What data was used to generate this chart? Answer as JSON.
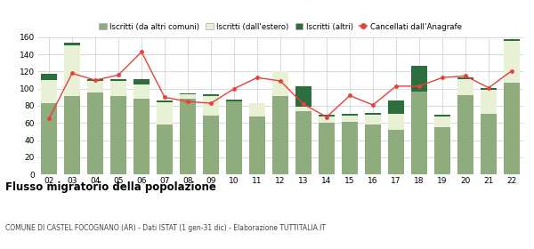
{
  "years": [
    "02",
    "03",
    "04",
    "05",
    "06",
    "07",
    "08",
    "09",
    "10",
    "11",
    "12",
    "13",
    "14",
    "15",
    "16",
    "17",
    "18",
    "19",
    "20",
    "21",
    "22"
  ],
  "iscritti_altri_comuni": [
    83,
    91,
    96,
    91,
    88,
    58,
    88,
    69,
    85,
    68,
    91,
    74,
    60,
    61,
    58,
    52,
    97,
    55,
    92,
    71,
    107
  ],
  "iscritti_estero": [
    27,
    60,
    13,
    18,
    17,
    26,
    5,
    22,
    0,
    15,
    30,
    5,
    8,
    8,
    12,
    19,
    0,
    13,
    19,
    28,
    49
  ],
  "iscritti_altri": [
    7,
    3,
    2,
    2,
    6,
    2,
    2,
    2,
    2,
    0,
    0,
    24,
    2,
    2,
    2,
    15,
    30,
    2,
    2,
    2,
    2
  ],
  "cancellati": [
    65,
    118,
    110,
    116,
    143,
    90,
    85,
    83,
    100,
    113,
    109,
    82,
    67,
    92,
    81,
    103,
    103,
    113,
    115,
    101,
    121
  ],
  "color_altri_comuni": "#8fac7e",
  "color_estero": "#e8f0d5",
  "color_altri": "#2d6e3e",
  "color_cancellati": "#e8413c",
  "color_grid": "#cccccc",
  "legend_labels": [
    "Iscritti (da altri comuni)",
    "Iscritti (dall'estero)",
    "Iscritti (altri)",
    "Cancellati dall’Anagrafe"
  ],
  "title": "Flusso migratorio della popolazione",
  "subtitle": "COMUNE DI CASTEL FOCOGNANO (AR) - Dati ISTAT (1 gen-31 dic) - Elaborazione TUTTITALIA.IT",
  "ylim": [
    0,
    160
  ],
  "yticks": [
    0,
    20,
    40,
    60,
    80,
    100,
    120,
    140,
    160
  ],
  "bar_width": 0.7
}
